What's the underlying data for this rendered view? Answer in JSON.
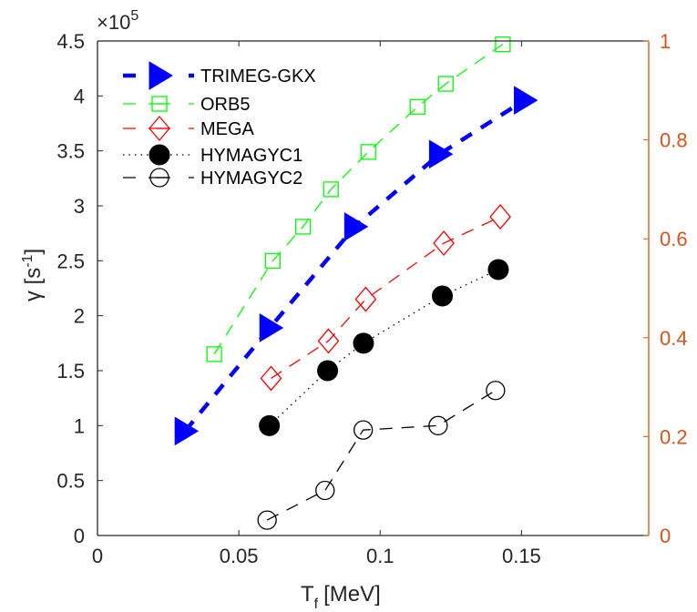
{
  "chart_data": {
    "type": "line",
    "title": "",
    "xlabel": "T",
    "xlabel_sub": "f",
    "xlabel_unit": "[MeV]",
    "ylabel": "γ [s",
    "ylabel_sup": "-1",
    "ylabel_end": "]",
    "y_multiplier": {
      "base": "×10",
      "exponent": "5"
    },
    "xlim": [
      0,
      0.195
    ],
    "ylim": [
      0,
      450000
    ],
    "y2lim": [
      0,
      1
    ],
    "xticks": [
      0,
      0.05,
      0.1,
      0.15
    ],
    "xtick_labels": [
      "0",
      "0.05",
      "0.1",
      "0.15"
    ],
    "yticks": [
      0,
      50000,
      100000,
      150000,
      200000,
      250000,
      300000,
      350000,
      400000,
      450000
    ],
    "ytick_labels": [
      "0",
      "0.5",
      "1",
      "1.5",
      "2",
      "2.5",
      "3",
      "3.5",
      "4",
      "4.5"
    ],
    "y2ticks": [
      0,
      0.2,
      0.4,
      0.6,
      0.8,
      1
    ],
    "y2tick_labels": [
      "0",
      "0.2",
      "0.4",
      "0.6",
      "0.8",
      "1"
    ],
    "y2_color": "#D95319",
    "grid": false,
    "legend_position": "top-left",
    "series": [
      {
        "name": "TRIMEG-GKX",
        "color": "#0000FF",
        "line_style": "dashed-thick",
        "marker": "triangle-right-filled",
        "x": [
          0.031,
          0.061,
          0.091,
          0.121,
          0.151
        ],
        "y": [
          95000,
          189000,
          281000,
          347000,
          396000
        ]
      },
      {
        "name": "ORB5",
        "color": "#00FF00",
        "line_style": "dashed",
        "marker": "square-open",
        "x": [
          0.0413,
          0.062,
          0.0727,
          0.0826,
          0.0958,
          0.1132,
          0.1232,
          0.1434
        ],
        "y": [
          165000,
          250000,
          281000,
          315000,
          349000,
          390000,
          411000,
          447000
        ]
      },
      {
        "name": "MEGA",
        "color": "#FF0000",
        "line_style": "dashed",
        "marker": "diamond-open",
        "x": [
          0.0614,
          0.0817,
          0.0949,
          0.1225,
          0.1425
        ],
        "y": [
          143000,
          177000,
          215000,
          266000,
          290000
        ]
      },
      {
        "name": "HYMAGYC1",
        "color": "#000000",
        "line_style": "dotted",
        "marker": "circle-filled",
        "x": [
          0.0608,
          0.0814,
          0.0941,
          0.122,
          0.1418
        ],
        "y": [
          100000,
          150000,
          175000,
          218000,
          242000
        ]
      },
      {
        "name": "HYMAGYC2",
        "color": "#000000",
        "line_style": "dashed",
        "marker": "circle-open",
        "x": [
          0.06,
          0.0805,
          0.094,
          0.1205,
          0.1408
        ],
        "y": [
          14000,
          41000,
          96000,
          100000,
          132000
        ]
      }
    ]
  }
}
